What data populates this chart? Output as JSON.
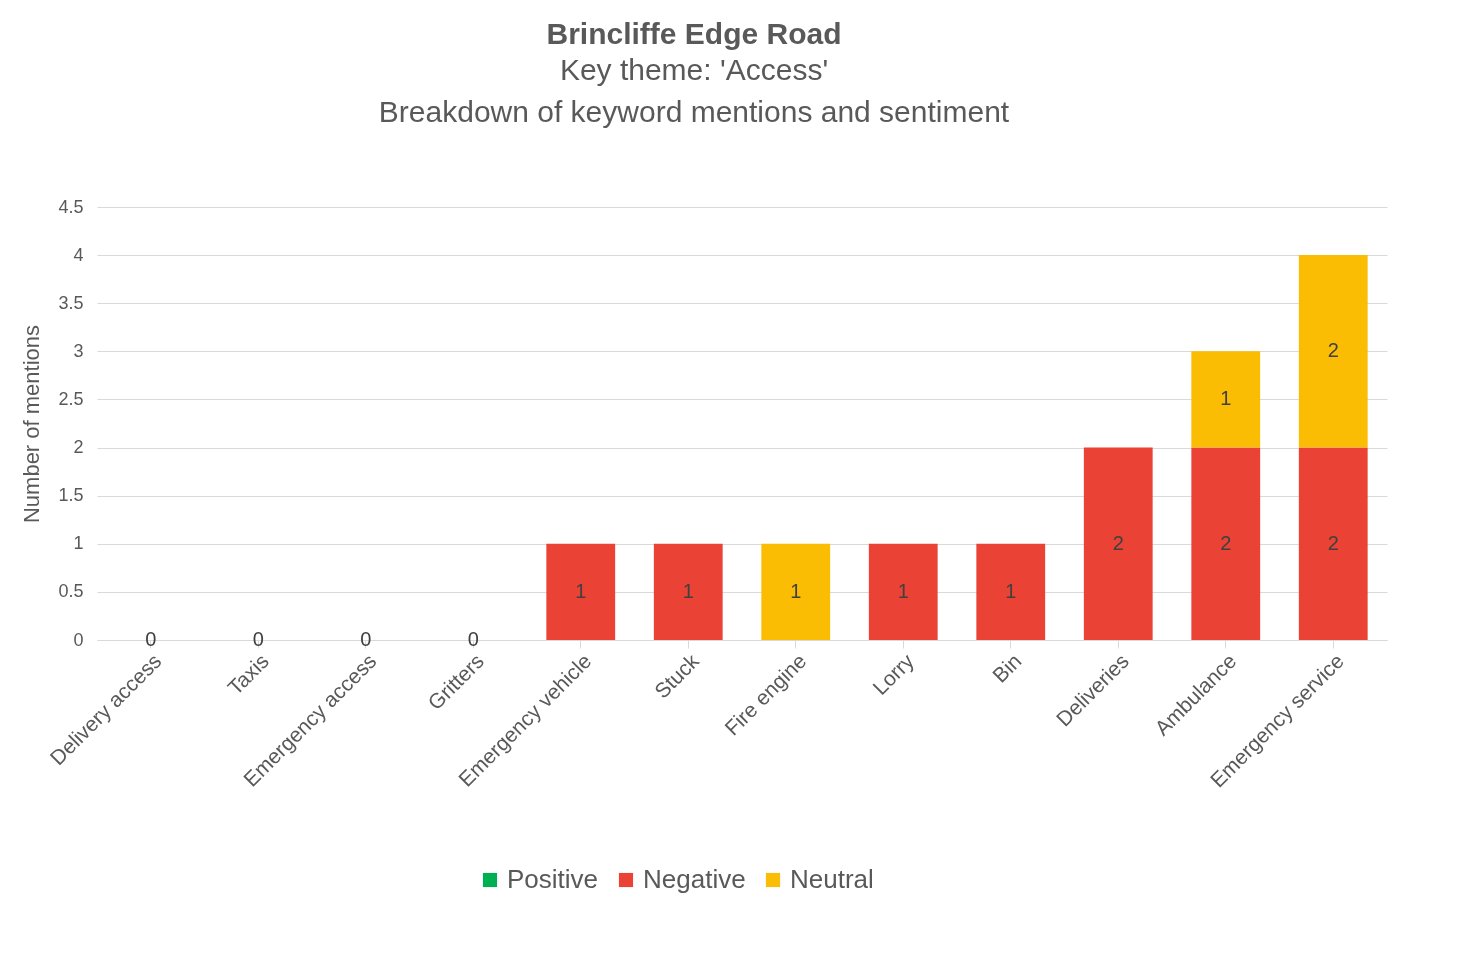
{
  "chart_data": {
    "type": "bar",
    "title": "Brincliffe Edge Road",
    "subtitle": "Key theme: 'Access'\nBreakdown of keyword mentions and sentiment",
    "ylabel": "Number of mentions",
    "categories": [
      "Delivery access",
      "Taxis",
      "Emergency access",
      "Gritters",
      "Emergency vehicle",
      "Stuck",
      "Fire engine",
      "Lorry",
      "Bin",
      "Deliveries",
      "Ambulance",
      "Emergency service"
    ],
    "series": [
      {
        "name": "Positive",
        "color": "#00b050",
        "values": [
          null,
          null,
          null,
          null,
          null,
          null,
          null,
          null,
          null,
          null,
          null,
          null
        ]
      },
      {
        "name": "Negative",
        "color": "#ea4335",
        "values": [
          0,
          0,
          0,
          0,
          1,
          1,
          null,
          1,
          1,
          2,
          2,
          2
        ]
      },
      {
        "name": "Neutral",
        "color": "#fbbc04",
        "values": [
          null,
          null,
          null,
          null,
          null,
          null,
          1,
          null,
          null,
          null,
          1,
          2
        ]
      }
    ],
    "stacked": true,
    "ylim": [
      0,
      4.5
    ],
    "yticks": [
      0,
      0.5,
      1,
      1.5,
      2,
      2.5,
      3,
      3.5,
      4,
      4.5
    ],
    "grid": "y",
    "legend": "bottom",
    "data_labels": true
  }
}
